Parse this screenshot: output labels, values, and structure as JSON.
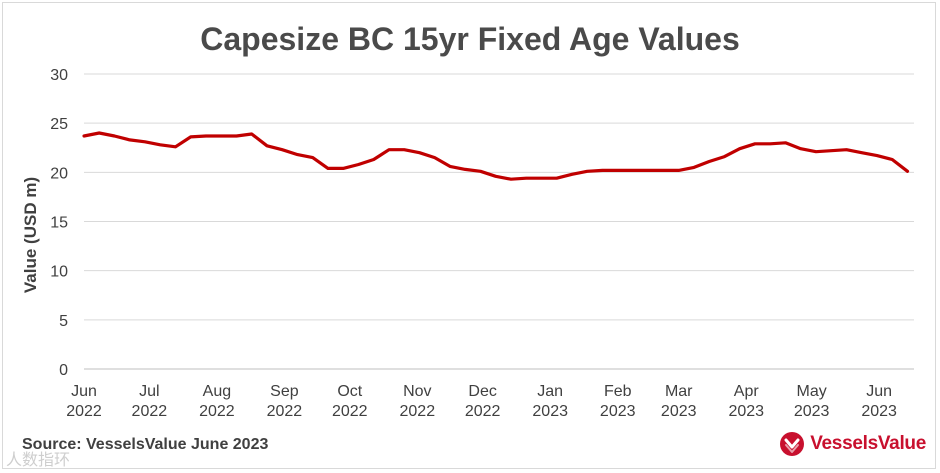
{
  "chart_data": {
    "type": "line",
    "title": "Capesize BC 15yr Fixed Age Values",
    "ylabel": "Value (USD m)",
    "xlabel": "",
    "ylim": [
      0,
      30
    ],
    "yticks": [
      0,
      5,
      10,
      15,
      20,
      25,
      30
    ],
    "grid": true,
    "line_color": "#c00000",
    "x_ticks": [
      {
        "month": "Jun",
        "year": "2022"
      },
      {
        "month": "Jul",
        "year": "2022"
      },
      {
        "month": "Aug",
        "year": "2022"
      },
      {
        "month": "Sep",
        "year": "2022"
      },
      {
        "month": "Oct",
        "year": "2022"
      },
      {
        "month": "Nov",
        "year": "2022"
      },
      {
        "month": "Dec",
        "year": "2022"
      },
      {
        "month": "Jan",
        "year": "2023"
      },
      {
        "month": "Feb",
        "year": "2023"
      },
      {
        "month": "Mar",
        "year": "2023"
      },
      {
        "month": "Apr",
        "year": "2023"
      },
      {
        "month": "May",
        "year": "2023"
      },
      {
        "month": "Jun",
        "year": "2023"
      }
    ],
    "series": [
      {
        "x": [
          "2022-06-01",
          "2022-06-08",
          "2022-06-15",
          "2022-06-22",
          "2022-06-29",
          "2022-07-06",
          "2022-07-13",
          "2022-07-20",
          "2022-07-27",
          "2022-08-03",
          "2022-08-10",
          "2022-08-17",
          "2022-08-24",
          "2022-08-31",
          "2022-09-07",
          "2022-09-14",
          "2022-09-21",
          "2022-09-28",
          "2022-10-05",
          "2022-10-12",
          "2022-10-19",
          "2022-10-26",
          "2022-11-02",
          "2022-11-09",
          "2022-11-16",
          "2022-11-23",
          "2022-11-30",
          "2022-12-07",
          "2022-12-14",
          "2022-12-21",
          "2022-12-28",
          "2023-01-04",
          "2023-01-11",
          "2023-01-18",
          "2023-01-25",
          "2023-02-01",
          "2023-02-08",
          "2023-02-15",
          "2023-02-22",
          "2023-03-01",
          "2023-03-08",
          "2023-03-15",
          "2023-03-22",
          "2023-03-29",
          "2023-04-05",
          "2023-04-12",
          "2023-04-19",
          "2023-04-26",
          "2023-05-03",
          "2023-05-10",
          "2023-05-17",
          "2023-05-24",
          "2023-05-31",
          "2023-06-07",
          "2023-06-14"
        ],
        "values": [
          23.7,
          24.0,
          23.7,
          23.3,
          23.1,
          22.8,
          22.6,
          23.6,
          23.7,
          23.7,
          23.7,
          23.9,
          22.7,
          22.3,
          21.8,
          21.5,
          20.4,
          20.4,
          20.8,
          21.3,
          22.3,
          22.3,
          22.0,
          21.5,
          20.6,
          20.3,
          20.1,
          19.6,
          19.3,
          19.4,
          19.4,
          19.4,
          19.8,
          20.1,
          20.2,
          20.2,
          20.2,
          20.2,
          20.2,
          20.2,
          20.5,
          21.1,
          21.6,
          22.4,
          22.9,
          22.9,
          23.0,
          22.4,
          22.1,
          22.2,
          22.3,
          22.0,
          21.7,
          21.3,
          20.1
        ]
      }
    ]
  },
  "footer": {
    "source": "Source: VesselsValue June 2023",
    "logo_text": "VesselsValue",
    "logo_icon": "vesselsvalue-chevron-icon",
    "watermark": "人数指环"
  }
}
